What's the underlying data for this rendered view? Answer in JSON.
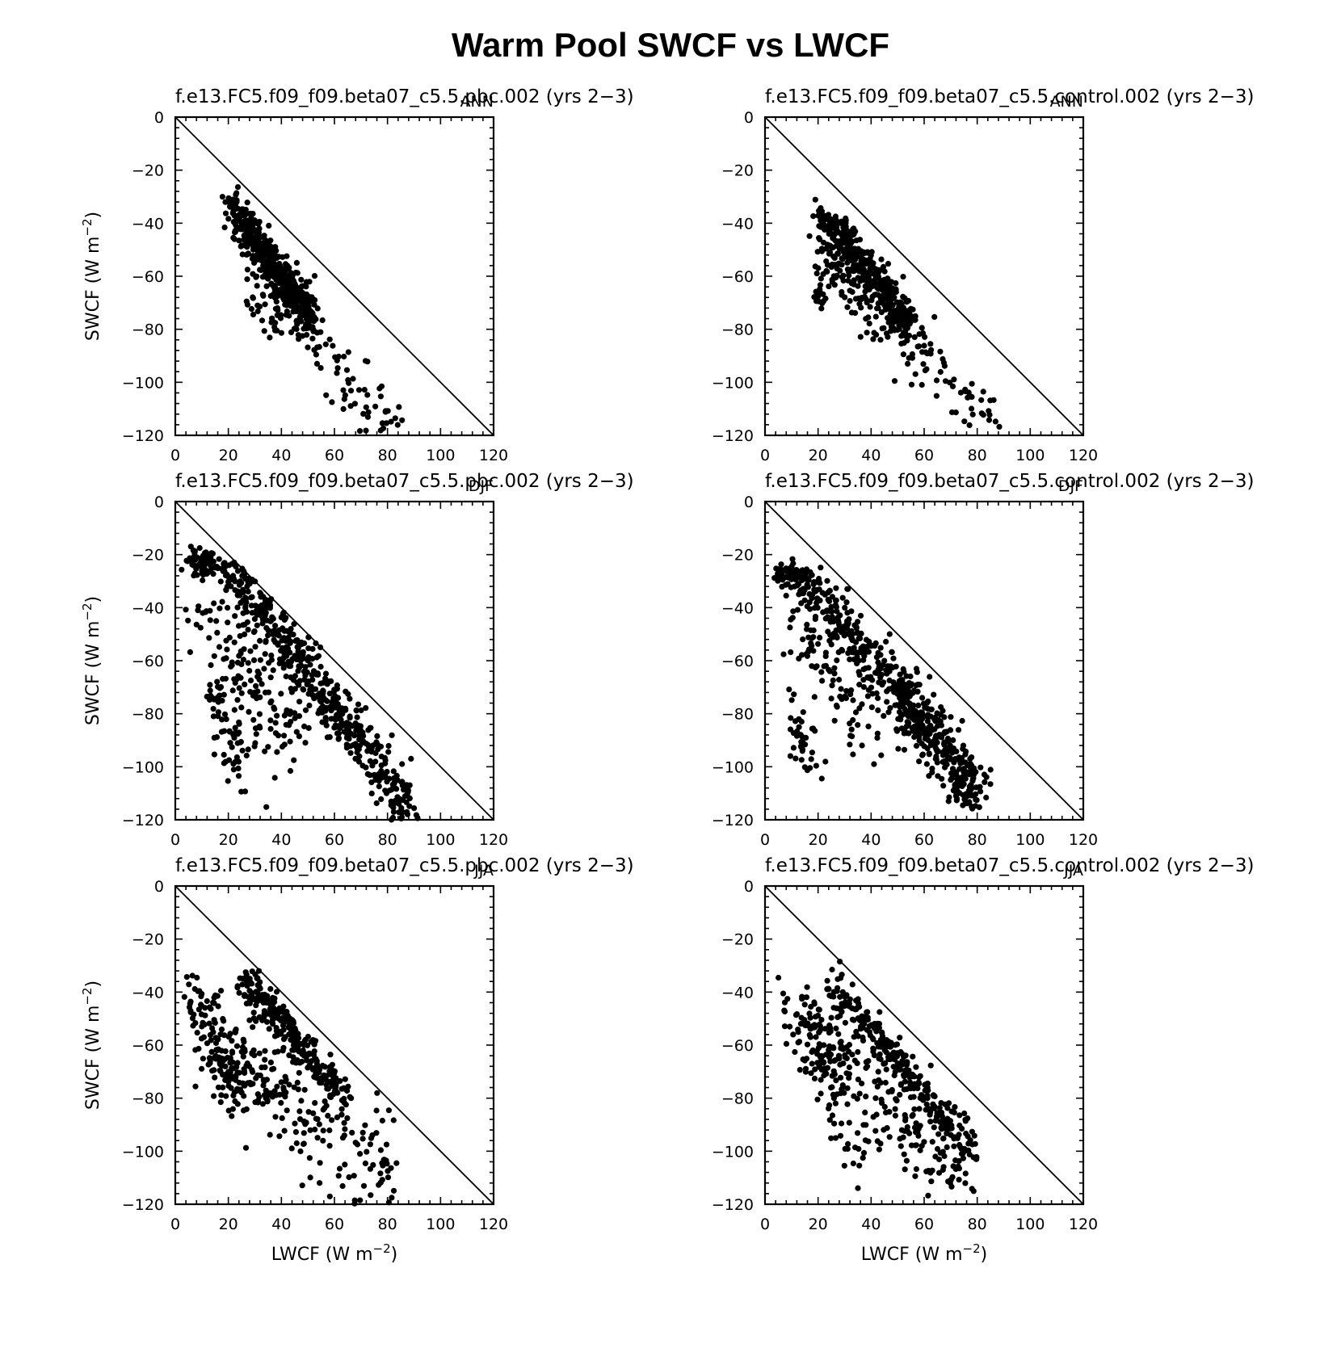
{
  "title": "Warm Pool SWCF vs LWCF",
  "axis_labels": {
    "x": "LWCF (W m",
    "y": "SWCF (W m",
    "exponent": "−2",
    "close": ")"
  },
  "ticks": {
    "x": [
      "0",
      "20",
      "40",
      "60",
      "80",
      "100",
      "120"
    ],
    "y": [
      "0",
      "−20",
      "−40",
      "−60",
      "−80",
      "−100",
      "−120"
    ]
  },
  "chart_data": [
    {
      "type": "scatter",
      "subtitle": "f.e13.FC5.f09_f09.beta07_c5.5.pbc.002 (yrs 2−3)",
      "season": "ANN",
      "xlabel": "",
      "ylabel": "SWCF (W m⁻²)",
      "xlim": [
        0,
        120
      ],
      "ylim": [
        -120,
        0
      ],
      "reference_line": [
        [
          0,
          0
        ],
        [
          120,
          -120
        ]
      ],
      "clusters": [
        {
          "n": 420,
          "x": [
            21,
            52
          ],
          "y": [
            -33,
            -78
          ],
          "spread": 3.5,
          "xjitter": 2
        },
        {
          "n": 120,
          "x": [
            28,
            48
          ],
          "y": [
            -48,
            -72
          ],
          "spread": 6,
          "xjitter": 3
        },
        {
          "n": 70,
          "x": [
            46,
            82
          ],
          "y": [
            -76,
            -118
          ],
          "spread": 5,
          "xjitter": 4
        },
        {
          "n": 25,
          "x": [
            27,
            38
          ],
          "y": [
            -70,
            -80
          ],
          "spread": 4,
          "xjitter": 2
        }
      ]
    },
    {
      "type": "scatter",
      "subtitle": "f.e13.FC5.f09_f09.beta07_c5.5.control.002 (yrs 2−3)",
      "season": "ANN",
      "xlabel": "",
      "ylabel": "",
      "xlim": [
        0,
        120
      ],
      "ylim": [
        -120,
        0
      ],
      "reference_line": [
        [
          0,
          0
        ],
        [
          120,
          -120
        ]
      ],
      "clusters": [
        {
          "n": 400,
          "x": [
            21,
            55
          ],
          "y": [
            -37,
            -78
          ],
          "spread": 3.5,
          "xjitter": 2
        },
        {
          "n": 120,
          "x": [
            22,
            50
          ],
          "y": [
            -55,
            -78
          ],
          "spread": 7,
          "xjitter": 3
        },
        {
          "n": 80,
          "x": [
            48,
            84
          ],
          "y": [
            -78,
            -118
          ],
          "spread": 6,
          "xjitter": 4
        },
        {
          "n": 12,
          "x": [
            20,
            22
          ],
          "y": [
            -68,
            -70
          ],
          "spread": 2,
          "xjitter": 1
        }
      ]
    },
    {
      "type": "scatter",
      "subtitle": "f.e13.FC5.f09_f09.beta07_c5.5.pbc.002 (yrs 2−3)",
      "season": "DJF",
      "xlabel": "",
      "ylabel": "SWCF (W m⁻²)",
      "xlim": [
        0,
        120
      ],
      "ylim": [
        -120,
        0
      ],
      "reference_line": [
        [
          0,
          0
        ],
        [
          120,
          -120
        ]
      ],
      "clusters": [
        {
          "n": 80,
          "x": [
            5,
            20
          ],
          "y": [
            -22,
            -26
          ],
          "spread": 2.5,
          "xjitter": 2
        },
        {
          "n": 480,
          "x": [
            22,
            88
          ],
          "y": [
            -28,
            -115
          ],
          "spread": 5,
          "xjitter": 3
        },
        {
          "n": 140,
          "x": [
            12,
            45
          ],
          "y": [
            -45,
            -90
          ],
          "spread": 9,
          "xjitter": 6
        },
        {
          "n": 60,
          "x": [
            14,
            26
          ],
          "y": [
            -70,
            -105
          ],
          "spread": 5,
          "xjitter": 3
        }
      ]
    },
    {
      "type": "scatter",
      "subtitle": "f.e13.FC5.f09_f09.beta07_c5.5.control.002 (yrs 2−3)",
      "season": "DJF",
      "xlabel": "",
      "ylabel": "",
      "xlim": [
        0,
        120
      ],
      "ylim": [
        -120,
        0
      ],
      "reference_line": [
        [
          0,
          0
        ],
        [
          120,
          -120
        ]
      ],
      "clusters": [
        {
          "n": 80,
          "x": [
            5,
            18
          ],
          "y": [
            -27,
            -31
          ],
          "spread": 2.5,
          "xjitter": 2
        },
        {
          "n": 360,
          "x": [
            18,
            80
          ],
          "y": [
            -32,
            -108
          ],
          "spread": 4.5,
          "xjitter": 3
        },
        {
          "n": 180,
          "x": [
            50,
            78
          ],
          "y": [
            -70,
            -112
          ],
          "spread": 6,
          "xjitter": 4
        },
        {
          "n": 100,
          "x": [
            12,
            40
          ],
          "y": [
            -45,
            -85
          ],
          "spread": 8,
          "xjitter": 4
        },
        {
          "n": 40,
          "x": [
            11,
            18
          ],
          "y": [
            -80,
            -102
          ],
          "spread": 5,
          "xjitter": 2
        }
      ]
    },
    {
      "type": "scatter",
      "subtitle": "f.e13.FC5.f09_f09.beta07_c5.5.pbc.002 (yrs 2−3)",
      "season": "JJA",
      "xlabel": "LWCF (W m⁻²)",
      "ylabel": "SWCF (W m⁻²)",
      "xlim": [
        0,
        120
      ],
      "ylim": [
        -120,
        0
      ],
      "reference_line": [
        [
          0,
          0
        ],
        [
          120,
          -120
        ]
      ],
      "clusters": [
        {
          "n": 260,
          "x": [
            26,
            64
          ],
          "y": [
            -35,
            -80
          ],
          "spread": 3.5,
          "xjitter": 2
        },
        {
          "n": 120,
          "x": [
            8,
            22
          ],
          "y": [
            -38,
            -80
          ],
          "spread": 7,
          "xjitter": 3
        },
        {
          "n": 200,
          "x": [
            25,
            80
          ],
          "y": [
            -65,
            -112
          ],
          "spread": 10,
          "xjitter": 5
        },
        {
          "n": 40,
          "x": [
            14,
            30
          ],
          "y": [
            -60,
            -78
          ],
          "spread": 7,
          "xjitter": 4
        }
      ]
    },
    {
      "type": "scatter",
      "subtitle": "f.e13.FC5.f09_f09.beta07_c5.5.control.002 (yrs 2−3)",
      "season": "JJA",
      "xlabel": "LWCF (W m⁻²)",
      "ylabel": "",
      "xlim": [
        0,
        120
      ],
      "ylim": [
        -120,
        0
      ],
      "reference_line": [
        [
          0,
          0
        ],
        [
          120,
          -120
        ]
      ],
      "clusters": [
        {
          "n": 260,
          "x": [
            25,
            78
          ],
          "y": [
            -35,
            -100
          ],
          "spread": 3.5,
          "xjitter": 2
        },
        {
          "n": 120,
          "x": [
            12,
            28
          ],
          "y": [
            -48,
            -68
          ],
          "spread": 6,
          "xjitter": 4
        },
        {
          "n": 170,
          "x": [
            30,
            75
          ],
          "y": [
            -62,
            -110
          ],
          "spread": 10,
          "xjitter": 5
        },
        {
          "n": 50,
          "x": [
            18,
            40
          ],
          "y": [
            -70,
            -100
          ],
          "spread": 8,
          "xjitter": 4
        }
      ]
    }
  ]
}
